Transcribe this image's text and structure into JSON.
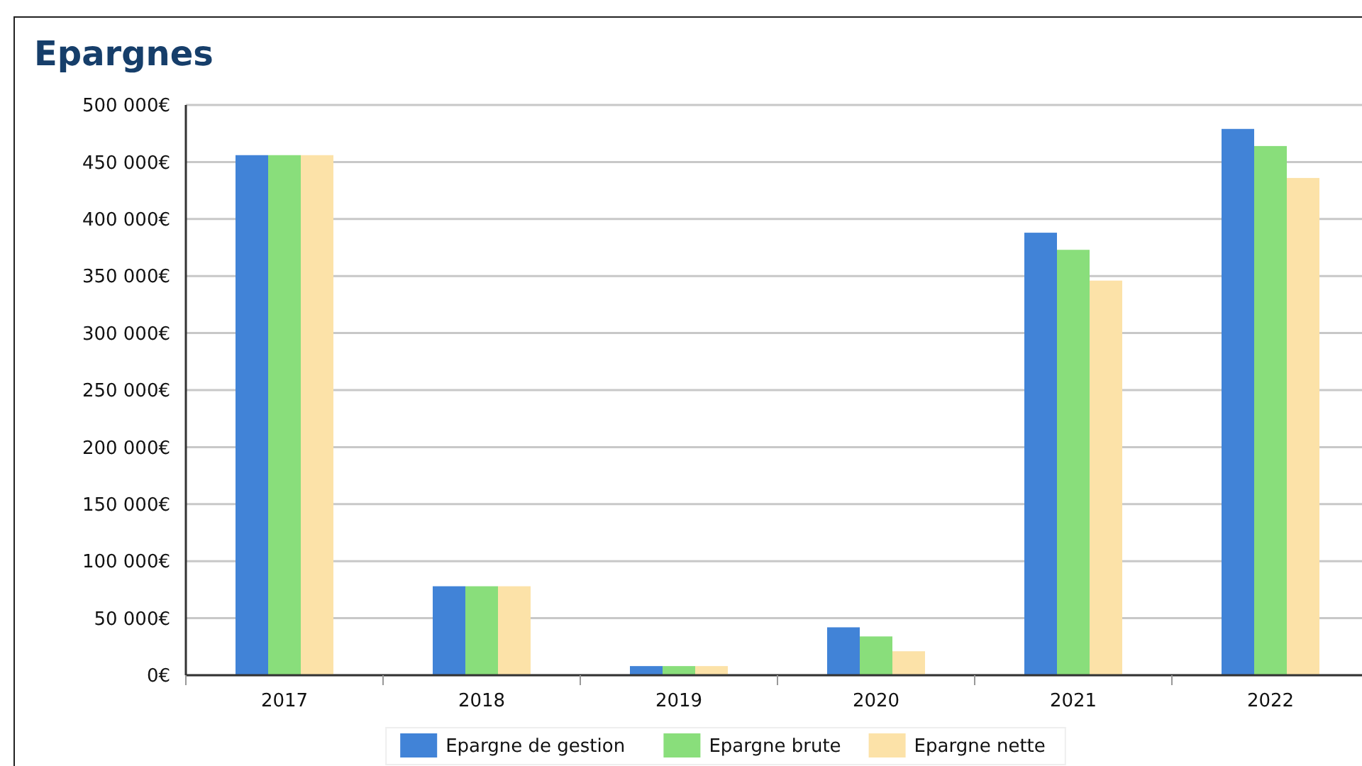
{
  "chart_data": {
    "type": "bar",
    "title": "Epargnes",
    "categories": [
      "2017",
      "2018",
      "2019",
      "2020",
      "2021",
      "2022"
    ],
    "series": [
      {
        "name": "Epargne de gestion",
        "color": "#4183d7",
        "values": [
          456000,
          78000,
          8000,
          42000,
          388000,
          479000
        ]
      },
      {
        "name": "Epargne brute",
        "color": "#89de7b",
        "values": [
          456000,
          78000,
          8000,
          34000,
          373000,
          464000
        ]
      },
      {
        "name": "Epargne nette",
        "color": "#fce2a8",
        "values": [
          456000,
          78000,
          8000,
          21000,
          346000,
          436000
        ]
      }
    ],
    "ylim": [
      0,
      500000
    ],
    "yticks": [
      {
        "value": 0,
        "label": "0€"
      },
      {
        "value": 50000,
        "label": "50 000€"
      },
      {
        "value": 100000,
        "label": "100 000€"
      },
      {
        "value": 150000,
        "label": "150 000€"
      },
      {
        "value": 200000,
        "label": "200 000€"
      },
      {
        "value": 250000,
        "label": "250 000€"
      },
      {
        "value": 300000,
        "label": "300 000€"
      },
      {
        "value": 350000,
        "label": "350 000€"
      },
      {
        "value": 400000,
        "label": "400 000€"
      },
      {
        "value": 450000,
        "label": "450 000€"
      },
      {
        "value": 500000,
        "label": "500 000€"
      }
    ],
    "grid": "y",
    "legend": "bottom"
  }
}
